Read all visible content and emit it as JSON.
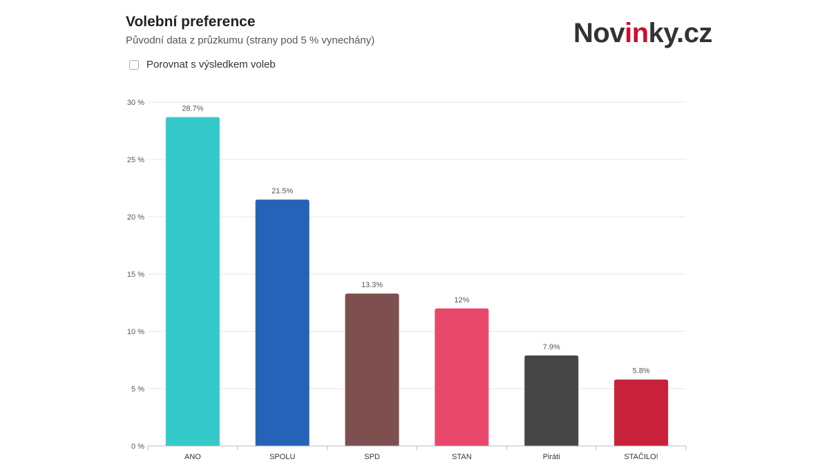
{
  "header": {
    "title": "Volební preference",
    "subtitle": "Původní data z průzkumu (strany pod 5 % vynechány)"
  },
  "logo": {
    "main": "Nov",
    "accent": "in",
    "tail": "ky.cz",
    "accent_color": "#c8102e"
  },
  "compare": {
    "label": "Porovnat s výsledkem voleb",
    "checked": false
  },
  "chart_data": {
    "type": "bar",
    "categories": [
      "ANO",
      "SPOLU",
      "SPD",
      "STAN",
      "Piráti",
      "STAČILO!"
    ],
    "values": [
      28.7,
      21.5,
      13.3,
      12,
      7.9,
      5.8
    ],
    "value_labels": [
      "28.7%",
      "21.5%",
      "13.3%",
      "12%",
      "7.9%",
      "5.8%"
    ],
    "colors": [
      "#36c9c9",
      "#2563b9",
      "#7d4f4f",
      "#e8496a",
      "#464646",
      "#c8213a"
    ],
    "yticks": [
      0,
      5,
      10,
      15,
      20,
      25,
      30
    ],
    "ytick_labels": [
      "0 %",
      "5 %",
      "10 %",
      "15 %",
      "20 %",
      "25 %",
      "30 %"
    ],
    "ylim": [
      0,
      30
    ],
    "grid": true,
    "title": "",
    "xlabel": "",
    "ylabel": ""
  }
}
